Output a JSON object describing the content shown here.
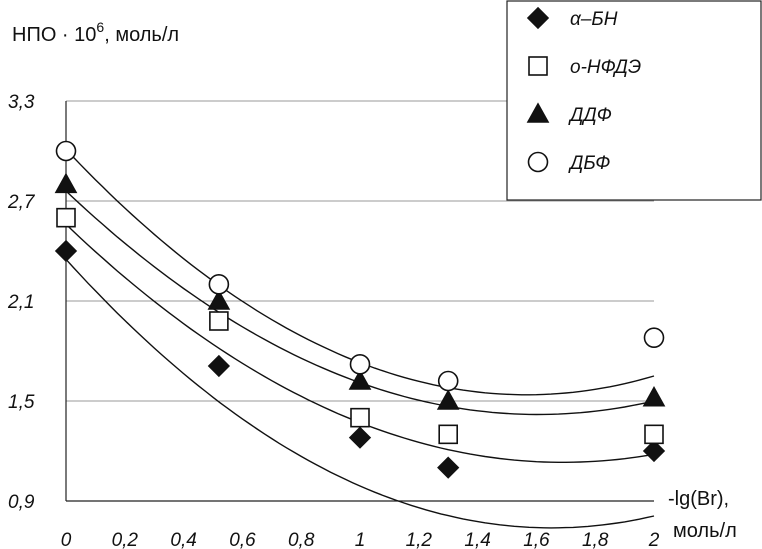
{
  "chart_data": {
    "type": "scatter",
    "ylabel": "НПО · 10",
    "ylabel_sup": "6",
    "ylabel_unit": ", моль/л",
    "xlabel_line1": "-lg(Br),",
    "xlabel_line2": "моль/л",
    "xlim": [
      0,
      2
    ],
    "ylim": [
      0.9,
      3.3
    ],
    "x_ticks": [
      "0",
      "0,2",
      "0,4",
      "0,6",
      "0,8",
      "1",
      "1,2",
      "1,4",
      "1,6",
      "1,8",
      "2"
    ],
    "x_tick_values": [
      0,
      0.2,
      0.4,
      0.6,
      0.8,
      1,
      1.2,
      1.4,
      1.6,
      1.8,
      2
    ],
    "y_ticks": [
      "0,9",
      "1,5",
      "2,1",
      "2,7",
      "3,3"
    ],
    "y_tick_values": [
      0.9,
      1.5,
      2.1,
      2.7,
      3.3
    ],
    "grid": "horizontal",
    "legend_position": "top-right",
    "series": [
      {
        "name": "α–БН",
        "marker": "diamond",
        "points": [
          [
            0,
            2.4
          ],
          [
            0.52,
            1.71
          ],
          [
            1,
            1.28
          ],
          [
            1.3,
            1.1
          ],
          [
            2,
            1.2
          ]
        ],
        "trend": [
          2.35,
          -1.95,
          0.59
        ]
      },
      {
        "name": "о-НФДЭ",
        "marker": "square",
        "points": [
          [
            0,
            2.6
          ],
          [
            0.52,
            1.98
          ],
          [
            1,
            1.4
          ],
          [
            1.3,
            1.3
          ],
          [
            2,
            1.3
          ]
        ],
        "trend": [
          2.56,
          -1.69,
          0.5
        ]
      },
      {
        "name": "ДДФ",
        "marker": "triangle",
        "points": [
          [
            0,
            2.8
          ],
          [
            0.52,
            2.1
          ],
          [
            1,
            1.62
          ],
          [
            1.3,
            1.5
          ],
          [
            2,
            1.52
          ]
        ],
        "trend": [
          2.76,
          -1.67,
          0.52
        ]
      },
      {
        "name": "ДБФ",
        "marker": "circle",
        "points": [
          [
            0,
            3.0
          ],
          [
            0.52,
            2.2
          ],
          [
            1,
            1.72
          ],
          [
            1.3,
            1.62
          ],
          [
            2,
            1.88
          ]
        ],
        "trend": [
          3.01,
          -1.88,
          0.6
        ]
      }
    ]
  }
}
